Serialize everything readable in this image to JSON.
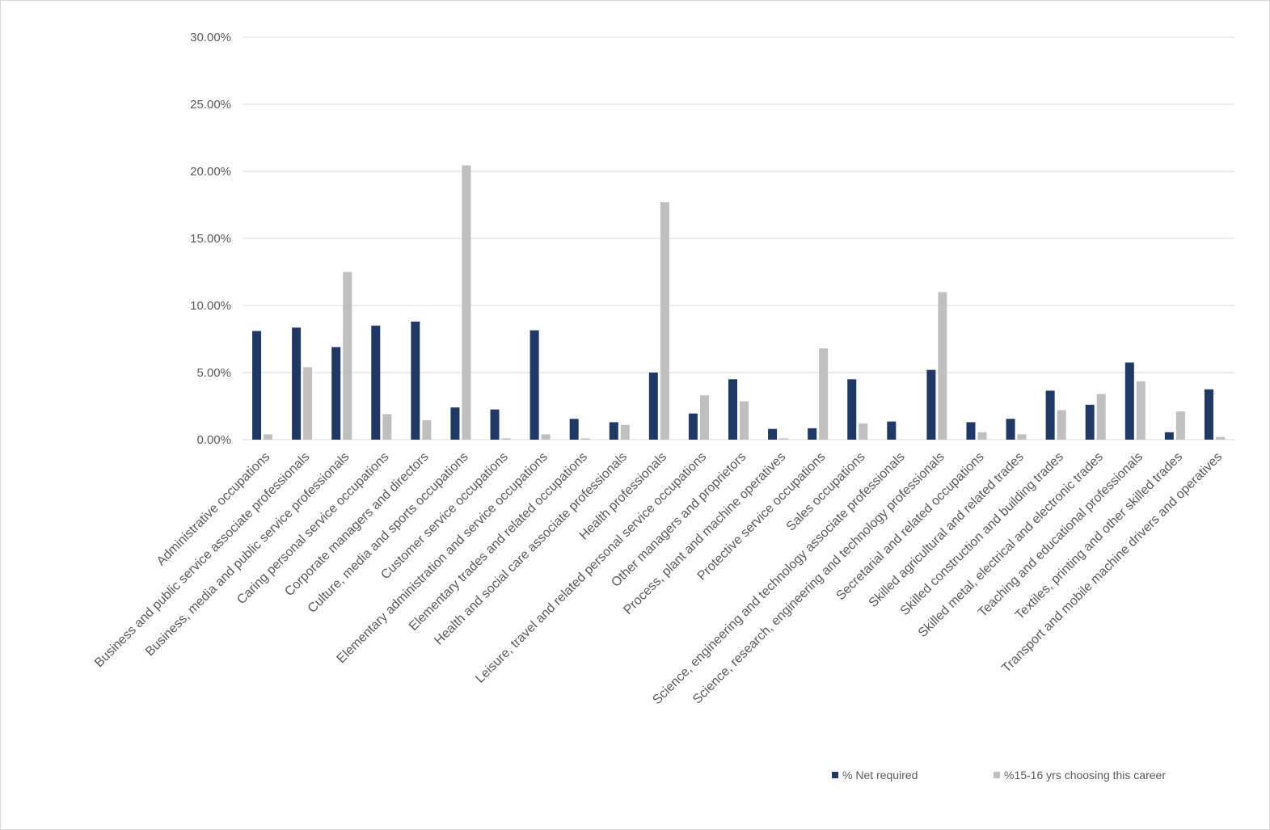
{
  "chart_data": {
    "type": "bar",
    "categories": [
      "Administrative occupations",
      "Business and public service associate professionals",
      "Business, media and public service professionals",
      "Caring personal service occupations",
      "Corporate managers and directors",
      "Culture, media and sports occupations",
      "Customer service occupations",
      "Elementary administration and service occupations",
      "Elementary trades and related occupations",
      "Health and social care associate professionals",
      "Health professionals",
      "Leisure, travel and related personal service occupations",
      "Other managers and proprietors",
      "Process, plant and machine operatives",
      "Protective service occupations",
      "Sales occupations",
      "Science, engineering and technology associate professionals",
      "Science, research, engineering and technology professionals",
      "Secretarial and related occupations",
      "Skilled agricultural and related trades",
      "Skilled construction and building trades",
      "Skilled metal, electrical and electronic trades",
      "Teaching and educational professionals",
      "Textiles, printing and other skilled trades",
      "Transport and mobile machine drivers and operatives"
    ],
    "series": [
      {
        "name": "% Net required",
        "color": "#1f3864",
        "values": [
          8.1,
          8.35,
          6.9,
          8.5,
          8.8,
          2.4,
          2.25,
          8.15,
          1.55,
          1.3,
          5.0,
          1.95,
          4.5,
          0.8,
          0.85,
          4.5,
          1.35,
          5.2,
          1.3,
          1.55,
          3.65,
          2.6,
          5.75,
          0.55,
          3.75
        ]
      },
      {
        "name": "%15-16 yrs choosing this career",
        "color": "#bfbfbf",
        "values": [
          0.4,
          5.4,
          12.5,
          1.9,
          1.45,
          20.45,
          0.1,
          0.4,
          0.1,
          1.1,
          17.7,
          3.3,
          2.85,
          0.1,
          6.8,
          1.2,
          0.0,
          11.0,
          0.55,
          0.4,
          2.2,
          3.4,
          4.35,
          2.1,
          0.2
        ]
      }
    ],
    "y_ticks": [
      "0.00%",
      "5.00%",
      "10.00%",
      "15.00%",
      "20.00%",
      "25.00%",
      "30.00%"
    ],
    "ylim": [
      0,
      30
    ],
    "grid": true,
    "legend_position": "bottom-right"
  }
}
